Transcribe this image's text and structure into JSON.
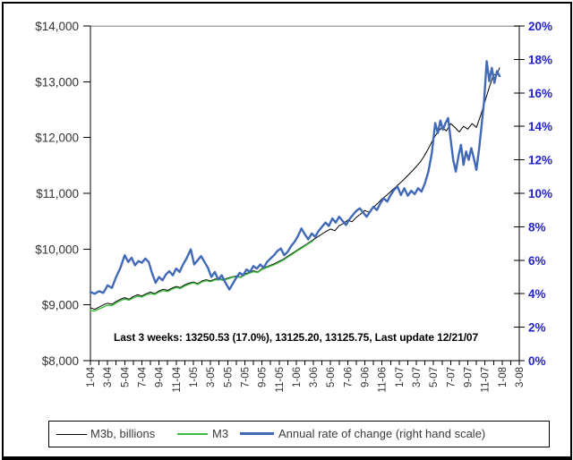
{
  "figure": {
    "background": "#FFFFFF",
    "border_color": "#000000"
  },
  "chart_data": {
    "type": "line",
    "title": "",
    "xlabel": "",
    "ylabel_left": "",
    "ylabel_right": "",
    "grid": "off",
    "top_gridline_color": "#A6A6A6",
    "axis_line_color": "#000000",
    "x_axis": {
      "range_months": [
        0,
        50
      ],
      "minor_tick_step": 1,
      "label_step": 2,
      "label_color": "#333333",
      "tick_labels": [
        "1-04",
        "3-04",
        "5-04",
        "7-04",
        "9-04",
        "11-04",
        "1-05",
        "3-05",
        "5-05",
        "7-05",
        "9-05",
        "11-05",
        "1-06",
        "3-06",
        "5-06",
        "7-06",
        "9-06",
        "11-06",
        "1-07",
        "3-07",
        "5-07",
        "7-07",
        "9-07",
        "11-07",
        "1-08",
        "3-08"
      ]
    },
    "left_axis": {
      "min": 8000,
      "max": 14000,
      "tick_step": 1000,
      "label_color": "#333333",
      "tick_values": [
        8000,
        9000,
        10000,
        11000,
        12000,
        13000,
        14000
      ],
      "tick_labels": [
        "$8,000",
        "$9,000",
        "$10,000",
        "$11,000",
        "$12,000",
        "$13,000",
        "$14,000"
      ]
    },
    "right_axis": {
      "min": 0,
      "max": 20,
      "tick_step": 2,
      "label_color": "#2222CC",
      "tick_values": [
        0,
        2,
        4,
        6,
        8,
        10,
        12,
        14,
        16,
        18,
        20
      ],
      "tick_labels": [
        "0%",
        "2%",
        "4%",
        "6%",
        "8%",
        "10%",
        "12%",
        "14%",
        "16%",
        "18%",
        "20%"
      ]
    },
    "annotation": {
      "text": "Last 3 weeks: 13250.53 (17.0%), 13125.20, 13125.75, Last update 12/21/07"
    },
    "legend_position": "bottom",
    "series": [
      {
        "name": "m3b",
        "legend_label": "M3b, billions",
        "color": "#000000",
        "width": 1,
        "axis": "left",
        "points": [
          [
            0,
            8950
          ],
          [
            0.5,
            8920
          ],
          [
            1,
            8960
          ],
          [
            1.5,
            9000
          ],
          [
            2,
            9030
          ],
          [
            2.5,
            9010
          ],
          [
            3,
            9060
          ],
          [
            3.5,
            9100
          ],
          [
            4,
            9130
          ],
          [
            4.5,
            9100
          ],
          [
            5,
            9150
          ],
          [
            5.5,
            9180
          ],
          [
            6,
            9160
          ],
          [
            6.5,
            9200
          ],
          [
            7,
            9230
          ],
          [
            7.5,
            9200
          ],
          [
            8,
            9250
          ],
          [
            8.5,
            9280
          ],
          [
            9,
            9260
          ],
          [
            9.5,
            9300
          ],
          [
            10,
            9330
          ],
          [
            10.5,
            9310
          ],
          [
            11,
            9360
          ],
          [
            11.5,
            9390
          ],
          [
            12,
            9410
          ],
          [
            12.5,
            9380
          ],
          [
            13,
            9430
          ],
          [
            13.5,
            9450
          ],
          [
            14,
            9430
          ],
          [
            14.5,
            9460
          ],
          [
            15,
            9470
          ],
          [
            15.5,
            9450
          ],
          [
            16,
            9480
          ],
          [
            16.5,
            9500
          ],
          [
            17,
            9520
          ],
          [
            17.5,
            9500
          ],
          [
            18,
            9550
          ],
          [
            18.5,
            9580
          ],
          [
            19,
            9610
          ],
          [
            19.5,
            9590
          ],
          [
            20,
            9650
          ],
          [
            20.5,
            9680
          ],
          [
            21,
            9710
          ],
          [
            21.5,
            9740
          ],
          [
            22,
            9780
          ],
          [
            22.5,
            9820
          ],
          [
            23,
            9870
          ],
          [
            23.5,
            9920
          ],
          [
            24,
            9970
          ],
          [
            24.5,
            10020
          ],
          [
            25,
            10070
          ],
          [
            25.5,
            10120
          ],
          [
            26,
            10170
          ],
          [
            26.5,
            10220
          ],
          [
            27,
            10270
          ],
          [
            27.5,
            10320
          ],
          [
            28,
            10360
          ],
          [
            28.5,
            10330
          ],
          [
            29,
            10420
          ],
          [
            29.5,
            10460
          ],
          [
            30,
            10520
          ],
          [
            30.5,
            10490
          ],
          [
            31,
            10570
          ],
          [
            31.5,
            10630
          ],
          [
            32,
            10690
          ],
          [
            32.5,
            10660
          ],
          [
            33,
            10750
          ],
          [
            33.5,
            10820
          ],
          [
            34,
            10900
          ],
          [
            34.5,
            10960
          ],
          [
            35,
            11030
          ],
          [
            35.5,
            11100
          ],
          [
            36,
            11170
          ],
          [
            36.5,
            11240
          ],
          [
            37,
            11320
          ],
          [
            37.5,
            11400
          ],
          [
            38,
            11480
          ],
          [
            38.5,
            11570
          ],
          [
            39,
            11690
          ],
          [
            39.5,
            11830
          ],
          [
            40,
            11980
          ],
          [
            40.5,
            12100
          ],
          [
            41,
            12180
          ],
          [
            41.5,
            12120
          ],
          [
            42,
            12250
          ],
          [
            42.5,
            12180
          ],
          [
            43,
            12100
          ],
          [
            43.5,
            12200
          ],
          [
            44,
            12150
          ],
          [
            44.5,
            12250
          ],
          [
            45,
            12180
          ],
          [
            45.5,
            12400
          ],
          [
            46,
            12650
          ],
          [
            46.5,
            12900
          ],
          [
            47,
            13130
          ],
          [
            47.4,
            13125
          ],
          [
            47.7,
            13250
          ]
        ]
      },
      {
        "name": "m3",
        "legend_label": "M3",
        "color": "#3CBE3C",
        "width": 1.4,
        "axis": "left",
        "points": [
          [
            0,
            8900
          ],
          [
            0.5,
            8890
          ],
          [
            1,
            8925
          ],
          [
            1.5,
            8960
          ],
          [
            2,
            8995
          ],
          [
            2.5,
            8985
          ],
          [
            3,
            9035
          ],
          [
            3.5,
            9075
          ],
          [
            4,
            9105
          ],
          [
            4.5,
            9085
          ],
          [
            5,
            9125
          ],
          [
            5.5,
            9155
          ],
          [
            6,
            9140
          ],
          [
            6.5,
            9180
          ],
          [
            7,
            9205
          ],
          [
            7.5,
            9185
          ],
          [
            8,
            9230
          ],
          [
            8.5,
            9255
          ],
          [
            9,
            9240
          ],
          [
            9.5,
            9280
          ],
          [
            10,
            9310
          ],
          [
            10.5,
            9295
          ],
          [
            11,
            9340
          ],
          [
            11.5,
            9370
          ],
          [
            12,
            9395
          ],
          [
            12.5,
            9365
          ],
          [
            13,
            9410
          ],
          [
            13.5,
            9435
          ],
          [
            14,
            9415
          ],
          [
            14.5,
            9445
          ],
          [
            15,
            9455
          ],
          [
            15.5,
            9440
          ],
          [
            16,
            9465
          ],
          [
            16.5,
            9490
          ],
          [
            17,
            9505
          ],
          [
            17.5,
            9490
          ],
          [
            18,
            9535
          ],
          [
            18.5,
            9565
          ],
          [
            19,
            9595
          ],
          [
            19.5,
            9580
          ],
          [
            20,
            9635
          ],
          [
            20.5,
            9665
          ],
          [
            21,
            9695
          ],
          [
            21.5,
            9725
          ],
          [
            22,
            9765
          ],
          [
            22.5,
            9805
          ],
          [
            23,
            9855
          ],
          [
            23.5,
            9905
          ],
          [
            24,
            9955
          ],
          [
            24.5,
            10005
          ],
          [
            25,
            10055
          ],
          [
            25.5,
            10105
          ],
          [
            26,
            10155
          ]
        ]
      },
      {
        "name": "rate",
        "legend_label": "Annual rate of change (right hand scale)",
        "color": "#4169B8",
        "width": 2.4,
        "axis": "right",
        "points": [
          [
            0,
            4.1
          ],
          [
            0.5,
            4.0
          ],
          [
            1,
            4.15
          ],
          [
            1.5,
            4.05
          ],
          [
            2,
            4.5
          ],
          [
            2.5,
            4.35
          ],
          [
            3,
            5.0
          ],
          [
            3.5,
            5.55
          ],
          [
            4,
            6.3
          ],
          [
            4.4,
            5.9
          ],
          [
            4.8,
            6.15
          ],
          [
            5.2,
            5.7
          ],
          [
            5.6,
            5.95
          ],
          [
            6,
            5.85
          ],
          [
            6.4,
            6.1
          ],
          [
            6.8,
            5.9
          ],
          [
            7.2,
            5.2
          ],
          [
            7.6,
            4.65
          ],
          [
            8,
            5.0
          ],
          [
            8.4,
            4.8
          ],
          [
            8.8,
            5.15
          ],
          [
            9.2,
            5.35
          ],
          [
            9.6,
            5.1
          ],
          [
            10,
            5.5
          ],
          [
            10.4,
            5.3
          ],
          [
            10.8,
            5.75
          ],
          [
            11.2,
            6.1
          ],
          [
            11.7,
            6.65
          ],
          [
            12.1,
            5.75
          ],
          [
            12.5,
            6.0
          ],
          [
            12.9,
            6.25
          ],
          [
            13.3,
            5.9
          ],
          [
            13.7,
            5.55
          ],
          [
            14.1,
            5.0
          ],
          [
            14.5,
            5.3
          ],
          [
            14.9,
            4.85
          ],
          [
            15.3,
            5.1
          ],
          [
            15.7,
            4.7
          ],
          [
            16.2,
            4.25
          ],
          [
            16.6,
            4.6
          ],
          [
            17,
            4.95
          ],
          [
            17.4,
            5.25
          ],
          [
            17.8,
            5.1
          ],
          [
            18.2,
            5.45
          ],
          [
            18.6,
            5.3
          ],
          [
            19,
            5.65
          ],
          [
            19.4,
            5.5
          ],
          [
            19.8,
            5.75
          ],
          [
            20.2,
            5.55
          ],
          [
            20.6,
            5.9
          ],
          [
            21,
            6.1
          ],
          [
            21.4,
            6.3
          ],
          [
            21.8,
            6.55
          ],
          [
            22.2,
            6.7
          ],
          [
            22.6,
            6.3
          ],
          [
            23,
            6.5
          ],
          [
            23.4,
            6.85
          ],
          [
            23.8,
            7.1
          ],
          [
            24.2,
            7.45
          ],
          [
            24.6,
            7.9
          ],
          [
            25,
            7.55
          ],
          [
            25.4,
            7.25
          ],
          [
            25.8,
            7.6
          ],
          [
            26.2,
            7.4
          ],
          [
            26.6,
            7.75
          ],
          [
            27,
            8.0
          ],
          [
            27.4,
            8.25
          ],
          [
            27.8,
            8.05
          ],
          [
            28.2,
            8.5
          ],
          [
            28.6,
            8.25
          ],
          [
            29,
            8.6
          ],
          [
            29.4,
            8.35
          ],
          [
            29.8,
            8.1
          ],
          [
            30.2,
            8.45
          ],
          [
            30.6,
            8.7
          ],
          [
            31,
            8.95
          ],
          [
            31.4,
            9.1
          ],
          [
            31.8,
            8.85
          ],
          [
            32.2,
            8.6
          ],
          [
            32.6,
            8.9
          ],
          [
            33,
            9.2
          ],
          [
            33.4,
            9.0
          ],
          [
            33.8,
            9.4
          ],
          [
            34.2,
            9.7
          ],
          [
            34.6,
            9.5
          ],
          [
            35,
            9.9
          ],
          [
            35.4,
            10.2
          ],
          [
            35.8,
            10.4
          ],
          [
            36.2,
            9.9
          ],
          [
            36.6,
            10.3
          ],
          [
            37,
            9.85
          ],
          [
            37.4,
            10.15
          ],
          [
            37.8,
            9.95
          ],
          [
            38.2,
            10.3
          ],
          [
            38.6,
            10.1
          ],
          [
            39,
            10.6
          ],
          [
            39.4,
            11.3
          ],
          [
            39.8,
            12.4
          ],
          [
            40.2,
            14.2
          ],
          [
            40.5,
            13.6
          ],
          [
            40.8,
            14.35
          ],
          [
            41.1,
            13.8
          ],
          [
            41.4,
            14.2
          ],
          [
            41.7,
            14.5
          ],
          [
            42,
            13.2
          ],
          [
            42.3,
            12.0
          ],
          [
            42.6,
            11.3
          ],
          [
            42.9,
            12.2
          ],
          [
            43.2,
            12.9
          ],
          [
            43.5,
            11.7
          ],
          [
            43.8,
            12.5
          ],
          [
            44.1,
            12.0
          ],
          [
            44.4,
            12.7
          ],
          [
            44.7,
            12.1
          ],
          [
            45,
            11.4
          ],
          [
            45.3,
            12.6
          ],
          [
            45.6,
            14.0
          ],
          [
            45.9,
            15.5
          ],
          [
            46.2,
            17.9
          ],
          [
            46.5,
            16.7
          ],
          [
            46.8,
            17.5
          ],
          [
            47.1,
            16.6
          ],
          [
            47.4,
            17.3
          ],
          [
            47.7,
            17.0
          ]
        ]
      }
    ]
  }
}
